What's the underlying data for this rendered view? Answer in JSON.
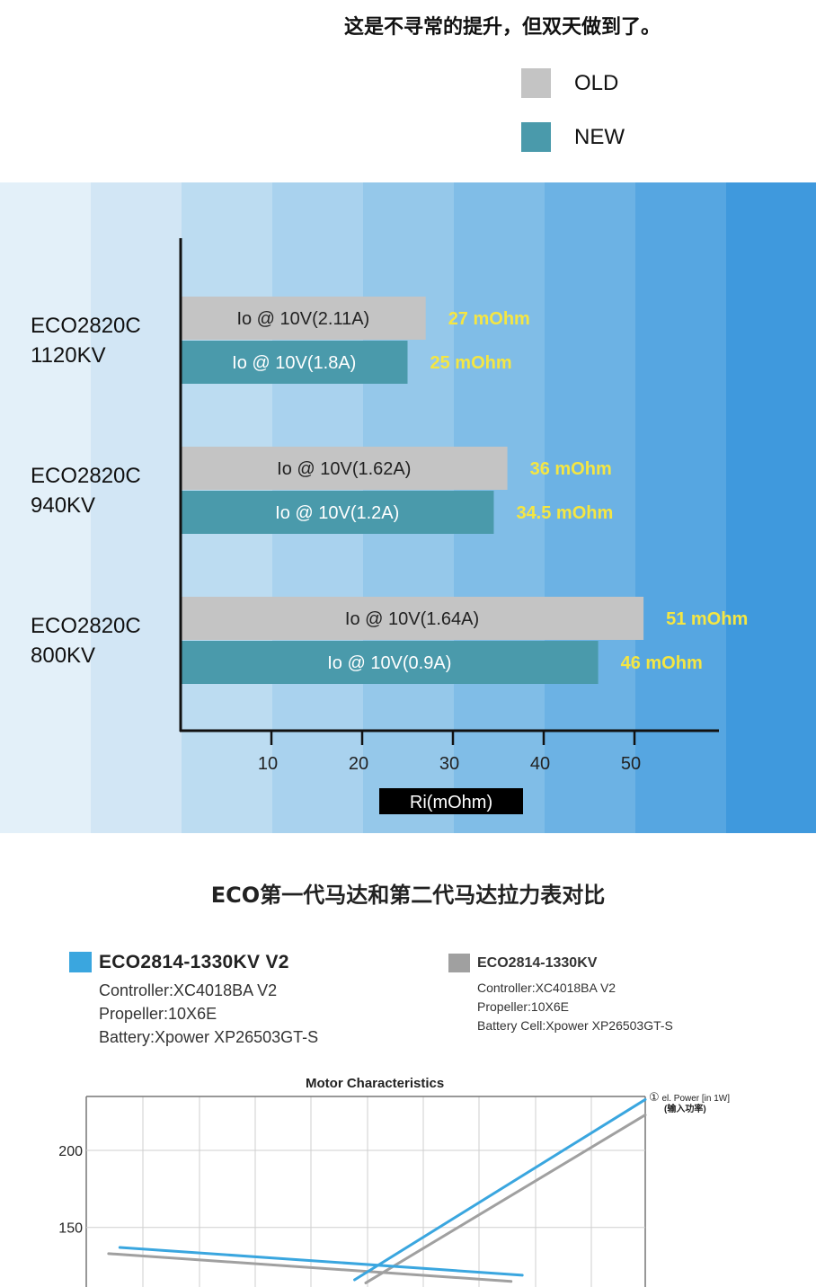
{
  "headline": "这是不寻常的提升，但双天做到了。",
  "legend": [
    {
      "label": "OLD",
      "color": "#c4c4c4"
    },
    {
      "label": "NEW",
      "color": "#4a9aab"
    }
  ],
  "band_colors": [
    "#e3f0f9",
    "#d2e6f5",
    "#bcdcf1",
    "#a9d2ee",
    "#95c8ea",
    "#80bde7",
    "#6cb2e4",
    "#56a6e1",
    "#3f99dd",
    "#2f8dd8"
  ],
  "chart_data": [
    {
      "type": "bar",
      "orientation": "horizontal",
      "categories": [
        {
          "line1": "ECO2820C",
          "line2": "1120KV"
        },
        {
          "line1": "ECO2820C",
          "line2": "940KV"
        },
        {
          "line1": "ECO2820C",
          "line2": "800KV"
        }
      ],
      "series": [
        {
          "name": "OLD",
          "color": "#c4c4c4",
          "values": [
            27,
            36,
            51
          ],
          "value_labels": [
            "27 mOhm",
            "36 mOhm",
            "51 mOhm"
          ],
          "bar_labels": [
            "Io @ 10V(2.11A)",
            "Io @ 10V(1.62A)",
            "Io @ 10V(1.64A)"
          ]
        },
        {
          "name": "NEW",
          "color": "#4a9aab",
          "values": [
            25,
            34.5,
            46
          ],
          "value_labels": [
            "25 mOhm",
            "34.5 mOhm",
            "46 mOhm"
          ],
          "bar_labels": [
            "Io @ 10V(1.8A)",
            "Io @ 10V(1.2A)",
            "Io @ 10V(0.9A)"
          ]
        }
      ],
      "xticks": [
        10,
        20,
        30,
        40,
        50
      ],
      "xlim": [
        0,
        59
      ],
      "xlabel": "Ri(mOhm)",
      "value_label_color": "#f5e642"
    },
    {
      "type": "line",
      "title": "Motor Characteristics",
      "yticks": [
        150,
        200
      ],
      "ylim": [
        120,
        235
      ],
      "xlim": [
        0,
        100
      ],
      "annotation": {
        "marker": "①",
        "line1": "el. Power [in 1W]",
        "line2": "(输入功率)"
      },
      "series": [
        {
          "name": "ECO2814-1330KV V2",
          "color": "#3aa6df",
          "lines": [
            {
              "points": [
                [
                  6,
                  137
                ],
                [
                  78,
                  119
                ]
              ]
            },
            {
              "points": [
                [
                  48,
                  116
                ],
                [
                  100,
                  233
                ]
              ]
            }
          ]
        },
        {
          "name": "ECO2814-1330KV",
          "color": "#a0a0a0",
          "lines": [
            {
              "points": [
                [
                  4,
                  133
                ],
                [
                  76,
                  115
                ]
              ]
            },
            {
              "points": [
                [
                  50,
                  114
                ],
                [
                  100,
                  223
                ]
              ]
            }
          ]
        }
      ]
    }
  ],
  "comparison": {
    "title": "ECO第一代马达和第二代马达拉力表对比",
    "v2": {
      "color": "#3aa6df",
      "name": "ECO2814-1330KV V2",
      "lines": [
        "Controller:XC4018BA V2",
        "Propeller:10X6E",
        "Battery:Xpower XP26503GT-S"
      ]
    },
    "v1": {
      "color": "#a0a0a0",
      "name": "ECO2814-1330KV",
      "lines": [
        "Controller:XC4018BA V2",
        "Propeller:10X6E",
        "Battery Cell:Xpower XP26503GT-S"
      ]
    }
  }
}
